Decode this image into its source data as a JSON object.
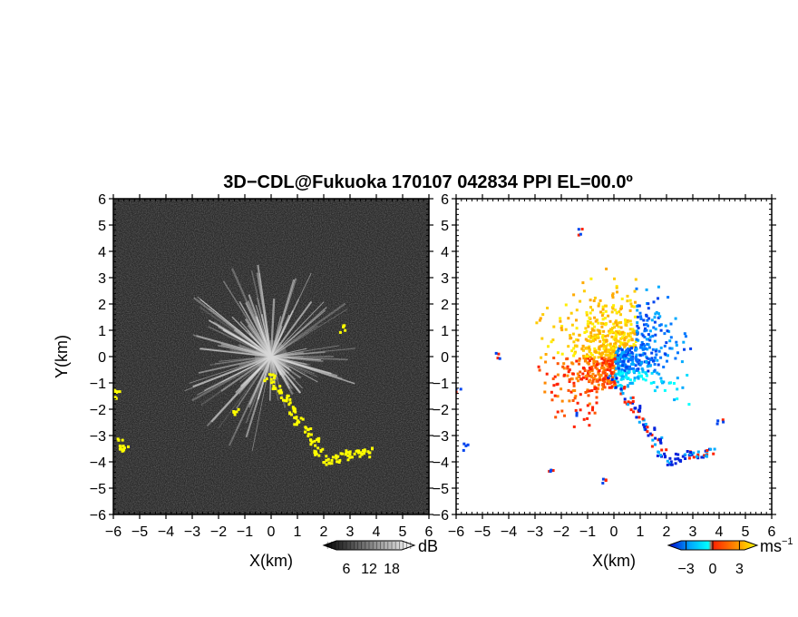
{
  "chart_data": {
    "type": "heatmap",
    "title": "3D−CDL@Fukuoka 170107 042834 PPI EL=00.0º",
    "panels": [
      {
        "name": "intensity",
        "xlabel": "X(km)",
        "ylabel": "Y(km)",
        "xlim": [
          -6,
          6
        ],
        "ylim": [
          -6,
          6
        ],
        "xticks": [
          "−6",
          "−5",
          "−4",
          "−3",
          "−2",
          "−1",
          "0",
          "1",
          "2",
          "3",
          "4",
          "5",
          "6"
        ],
        "yticks": [
          "−6",
          "−5",
          "−4",
          "−3",
          "−2",
          "−1",
          "0",
          "1",
          "2",
          "3",
          "4",
          "5",
          "6"
        ],
        "colorbar": {
          "label": "dB",
          "ticks": [
            6,
            12,
            18
          ],
          "range": [
            0,
            24
          ],
          "colors": [
            "#000000",
            "#ffffff"
          ]
        },
        "background_color": "#2b2b2b",
        "highlight_color": "#ffff00"
      },
      {
        "name": "doppler-velocity",
        "xlabel": "X(km)",
        "ylabel": "",
        "xlim": [
          -6,
          6
        ],
        "ylim": [
          -6,
          6
        ],
        "xticks": [
          "−6",
          "−5",
          "−4",
          "−3",
          "−2",
          "−1",
          "0",
          "1",
          "2",
          "3",
          "4",
          "5",
          "6"
        ],
        "yticks": [
          "−6",
          "−5",
          "−4",
          "−3",
          "−2",
          "−1",
          "0",
          "1",
          "2",
          "3",
          "4",
          "5",
          "6"
        ],
        "colorbar": {
          "label": "ms",
          "label_superscript": "−1",
          "ticks": [
            "−3",
            "0",
            "3"
          ],
          "range": [
            -5,
            5
          ],
          "colors": [
            "#0000cc",
            "#00aaff",
            "#00ffff",
            "#ff2200",
            "#ff8800",
            "#ffff00"
          ]
        }
      }
    ]
  }
}
